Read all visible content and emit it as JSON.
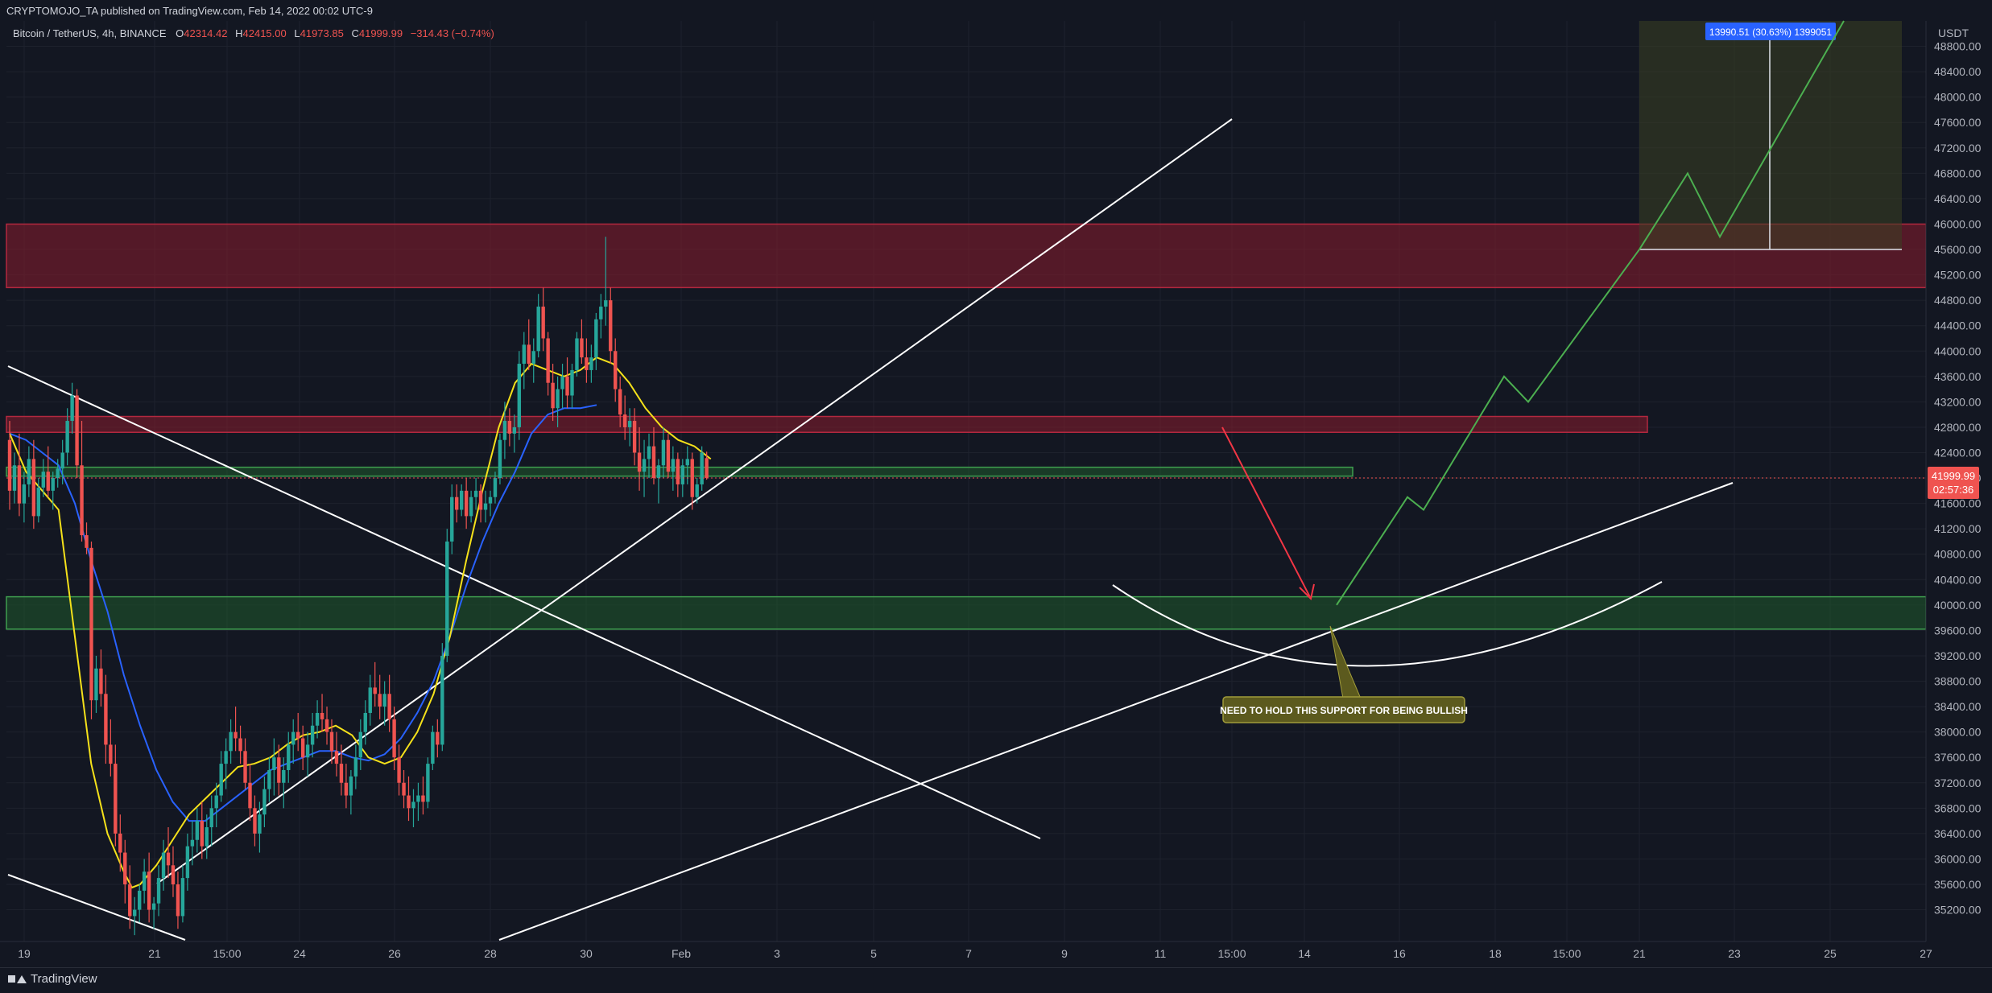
{
  "header": {
    "publisher_line": "CRYPTOMOJO_TA published on TradingView.com, Feb 14, 2022 00:02 UTC-9",
    "symbol": "Bitcoin / TetherUS, 4h, BINANCE",
    "ohlc": {
      "open_label": "O",
      "open": "42314.42",
      "high_label": "H",
      "high": "42415.00",
      "low_label": "L",
      "low": "41973.85",
      "close_label": "C",
      "close": "41999.99",
      "change": "−314.43 (−0.74%)"
    }
  },
  "footer": {
    "brand": "TradingView"
  },
  "colors": {
    "background": "#131722",
    "bull": "#26a69a",
    "bear": "#ef5350",
    "ema_fast": "#f5e11a",
    "ema_slow": "#2962ff",
    "resistance_zone": "#8b1c2e",
    "support_zone": "#1f5a2b",
    "projection": "#4caf50",
    "down_arrow": "#f23645",
    "callout": "#5c5a1e"
  },
  "chart_data": {
    "type": "candlestick",
    "price_axis": {
      "unit": "USDT",
      "range": [
        34700,
        49200
      ],
      "ticks": [
        "35200.00",
        "35600.00",
        "36000.00",
        "36400.00",
        "36800.00",
        "37200.00",
        "37600.00",
        "38000.00",
        "38400.00",
        "38800.00",
        "39200.00",
        "39600.00",
        "40000.00",
        "40400.00",
        "40800.00",
        "41200.00",
        "41600.00",
        "42000.00",
        "42400.00",
        "42800.00",
        "43200.00",
        "43600.00",
        "44000.00",
        "44400.00",
        "44800.00",
        "45200.00",
        "45600.00",
        "46000.00",
        "46400.00",
        "46800.00",
        "47200.00",
        "47600.00",
        "48000.00",
        "48400.00",
        "48800.00"
      ],
      "last_price": "41999.99",
      "countdown": "02:57:36"
    },
    "time_axis": {
      "labels": [
        "19",
        "21",
        "15:00",
        "24",
        "26",
        "28",
        "30",
        "Feb",
        "3",
        "5",
        "7",
        "9",
        "11",
        "15:00",
        "14",
        "16",
        "18",
        "15:00",
        "21",
        "23",
        "25",
        "27"
      ]
    },
    "candles": [
      [
        42600,
        42900,
        41500,
        41800
      ],
      [
        41800,
        42400,
        41600,
        42200
      ],
      [
        42200,
        42700,
        41400,
        41600
      ],
      [
        41600,
        42100,
        41300,
        41900
      ],
      [
        41900,
        42500,
        41700,
        42300
      ],
      [
        42300,
        42600,
        41200,
        41400
      ],
      [
        41400,
        42000,
        41300,
        41850
      ],
      [
        41850,
        42300,
        41700,
        42100
      ],
      [
        42100,
        42500,
        41700,
        41800
      ],
      [
        41800,
        42100,
        41500,
        42000
      ],
      [
        42000,
        42300,
        41850,
        42150
      ],
      [
        42150,
        42600,
        41900,
        42400
      ],
      [
        42400,
        43100,
        42200,
        42900
      ],
      [
        42900,
        43500,
        42700,
        43300
      ],
      [
        43300,
        43400,
        42000,
        42200
      ],
      [
        42200,
        42900,
        41000,
        41100
      ],
      [
        41100,
        41300,
        40800,
        40900
      ],
      [
        40900,
        41000,
        38200,
        38500
      ],
      [
        38500,
        39200,
        38300,
        39000
      ],
      [
        39000,
        39300,
        38400,
        38600
      ],
      [
        38600,
        38900,
        37500,
        37800
      ],
      [
        37800,
        38200,
        37300,
        37500
      ],
      [
        37500,
        37800,
        36200,
        36400
      ],
      [
        36400,
        36700,
        35800,
        36100
      ],
      [
        36100,
        36300,
        35300,
        35600
      ],
      [
        35600,
        35900,
        34900,
        35100
      ],
      [
        35100,
        35400,
        34800,
        35200
      ],
      [
        35200,
        35600,
        35000,
        35500
      ],
      [
        35500,
        36000,
        35300,
        35800
      ],
      [
        35800,
        36100,
        35000,
        35200
      ],
      [
        35200,
        35400,
        34900,
        35300
      ],
      [
        35300,
        35900,
        35100,
        35700
      ],
      [
        35700,
        36300,
        35500,
        36100
      ],
      [
        36100,
        36500,
        35700,
        35900
      ],
      [
        35900,
        36200,
        35400,
        35600
      ],
      [
        35600,
        35800,
        34900,
        35100
      ],
      [
        35100,
        35900,
        35000,
        35700
      ],
      [
        35700,
        36400,
        35500,
        36200
      ],
      [
        36200,
        36600,
        35900,
        36300
      ],
      [
        36300,
        36800,
        36100,
        36600
      ],
      [
        36600,
        36900,
        36000,
        36200
      ],
      [
        36200,
        36700,
        36000,
        36500
      ],
      [
        36500,
        37000,
        36200,
        36800
      ],
      [
        36800,
        37200,
        36500,
        37000
      ],
      [
        37000,
        37700,
        36900,
        37500
      ],
      [
        37500,
        37900,
        37100,
        37700
      ],
      [
        37700,
        38200,
        37500,
        38000
      ],
      [
        38000,
        38400,
        37700,
        37900
      ],
      [
        37900,
        38100,
        37500,
        37700
      ],
      [
        37700,
        37900,
        37100,
        37200
      ],
      [
        37200,
        37500,
        36600,
        36800
      ],
      [
        36800,
        37000,
        36200,
        36400
      ],
      [
        36400,
        36900,
        36100,
        36700
      ],
      [
        36700,
        37300,
        36500,
        37100
      ],
      [
        37100,
        37600,
        36900,
        37400
      ],
      [
        37400,
        37900,
        37000,
        37600
      ],
      [
        37600,
        37800,
        37000,
        37200
      ],
      [
        37200,
        37600,
        36800,
        37400
      ],
      [
        37400,
        38000,
        37200,
        37800
      ],
      [
        37800,
        38200,
        37500,
        38000
      ],
      [
        38000,
        38300,
        37700,
        37900
      ],
      [
        37900,
        38100,
        37400,
        37600
      ],
      [
        37600,
        38000,
        37300,
        37800
      ],
      [
        37800,
        38300,
        37600,
        38100
      ],
      [
        38100,
        38500,
        37900,
        38300
      ],
      [
        38300,
        38600,
        38000,
        38200
      ],
      [
        38200,
        38400,
        37800,
        38000
      ],
      [
        38000,
        38200,
        37500,
        37700
      ],
      [
        37700,
        38000,
        37300,
        37500
      ],
      [
        37500,
        37800,
        37000,
        37200
      ],
      [
        37200,
        37500,
        36800,
        37000
      ],
      [
        37000,
        37400,
        36700,
        37300
      ],
      [
        37300,
        37800,
        37100,
        37600
      ],
      [
        37600,
        38200,
        37400,
        38000
      ],
      [
        38000,
        38500,
        37800,
        38300
      ],
      [
        38300,
        38900,
        38100,
        38700
      ],
      [
        38700,
        39100,
        38400,
        38600
      ],
      [
        38600,
        38900,
        38200,
        38400
      ],
      [
        38400,
        38800,
        38100,
        38600
      ],
      [
        38600,
        38900,
        38000,
        38200
      ],
      [
        38200,
        38400,
        37400,
        37600
      ],
      [
        37600,
        37800,
        37000,
        37200
      ],
      [
        37200,
        37400,
        36800,
        37000
      ],
      [
        37000,
        37300,
        36600,
        36800
      ],
      [
        36800,
        37100,
        36500,
        36900
      ],
      [
        36900,
        37200,
        36600,
        37000
      ],
      [
        37000,
        37300,
        36700,
        36900
      ],
      [
        36900,
        37600,
        36800,
        37500
      ],
      [
        37500,
        38100,
        37400,
        38000
      ],
      [
        38000,
        38200,
        37600,
        37800
      ],
      [
        37800,
        39400,
        37700,
        39200
      ],
      [
        39200,
        41200,
        39100,
        41000
      ],
      [
        41000,
        41900,
        40800,
        41700
      ],
      [
        41700,
        41900,
        41300,
        41500
      ],
      [
        41500,
        41900,
        41400,
        41800
      ],
      [
        41800,
        42000,
        41200,
        41400
      ],
      [
        41400,
        41800,
        41300,
        41700
      ],
      [
        41700,
        42000,
        41500,
        41800
      ],
      [
        41800,
        41900,
        41300,
        41500
      ],
      [
        41500,
        41800,
        41300,
        41600
      ],
      [
        41600,
        41800,
        41400,
        41700
      ],
      [
        41700,
        42100,
        41600,
        42000
      ],
      [
        42000,
        42700,
        41900,
        42600
      ],
      [
        42600,
        43200,
        42300,
        42900
      ],
      [
        42900,
        43100,
        42500,
        42700
      ],
      [
        42700,
        43000,
        42400,
        42800
      ],
      [
        42800,
        44000,
        42600,
        43800
      ],
      [
        43800,
        44300,
        43400,
        44100
      ],
      [
        44100,
        44500,
        43700,
        43800
      ],
      [
        43800,
        44200,
        43500,
        44000
      ],
      [
        44000,
        44900,
        43900,
        44700
      ],
      [
        44700,
        45000,
        44000,
        44200
      ],
      [
        44200,
        44300,
        43300,
        43500
      ],
      [
        43500,
        43800,
        42900,
        43100
      ],
      [
        43100,
        43600,
        42800,
        43400
      ],
      [
        43400,
        43800,
        43100,
        43600
      ],
      [
        43600,
        43900,
        43100,
        43300
      ],
      [
        43300,
        43800,
        43100,
        43700
      ],
      [
        43700,
        44300,
        43600,
        44200
      ],
      [
        44200,
        44500,
        43800,
        43900
      ],
      [
        43900,
        44200,
        43500,
        43700
      ],
      [
        43700,
        44100,
        43500,
        43900
      ],
      [
        43900,
        44600,
        43700,
        44500
      ],
      [
        44500,
        44900,
        44200,
        44700
      ],
      [
        44700,
        45800,
        44400,
        44800
      ],
      [
        44800,
        45000,
        43800,
        44000
      ],
      [
        44000,
        44200,
        43200,
        43400
      ],
      [
        43400,
        43600,
        42800,
        43000
      ],
      [
        43000,
        43300,
        42600,
        42800
      ],
      [
        42800,
        43100,
        42500,
        42900
      ],
      [
        42900,
        43100,
        42200,
        42400
      ],
      [
        42400,
        42800,
        41800,
        42100
      ],
      [
        42100,
        42600,
        41700,
        42300
      ],
      [
        42300,
        42700,
        42000,
        42500
      ],
      [
        42500,
        42800,
        41900,
        42000
      ],
      [
        42000,
        42300,
        41600,
        42200
      ],
      [
        42200,
        42800,
        42000,
        42600
      ],
      [
        42600,
        42700,
        42000,
        42100
      ],
      [
        42100,
        42500,
        41800,
        42300
      ],
      [
        42300,
        42400,
        41700,
        41900
      ],
      [
        41900,
        42300,
        41700,
        42200
      ],
      [
        42200,
        42500,
        41900,
        42300
      ],
      [
        42300,
        42400,
        41500,
        41700
      ],
      [
        41700,
        42000,
        41600,
        41900
      ],
      [
        41900,
        42500,
        41800,
        42400
      ],
      [
        42314,
        42415,
        41974,
        42000
      ]
    ],
    "ema_fast": [
      [
        0,
        42700
      ],
      [
        20,
        42100
      ],
      [
        40,
        41800
      ],
      [
        60,
        41500
      ],
      [
        80,
        39500
      ],
      [
        100,
        37500
      ],
      [
        120,
        36400
      ],
      [
        140,
        35800
      ],
      [
        150,
        35550
      ],
      [
        160,
        35600
      ],
      [
        180,
        35900
      ],
      [
        200,
        36300
      ],
      [
        220,
        36700
      ],
      [
        240,
        36950
      ],
      [
        260,
        37200
      ],
      [
        280,
        37450
      ],
      [
        300,
        37500
      ],
      [
        320,
        37600
      ],
      [
        340,
        37800
      ],
      [
        360,
        37950
      ],
      [
        380,
        38000
      ],
      [
        400,
        38100
      ],
      [
        420,
        37950
      ],
      [
        440,
        37600
      ],
      [
        460,
        37500
      ],
      [
        480,
        37600
      ],
      [
        500,
        38000
      ],
      [
        520,
        38600
      ],
      [
        540,
        39500
      ],
      [
        560,
        40700
      ],
      [
        580,
        41800
      ],
      [
        600,
        42800
      ],
      [
        620,
        43500
      ],
      [
        640,
        43800
      ],
      [
        660,
        43700
      ],
      [
        680,
        43600
      ],
      [
        700,
        43700
      ],
      [
        720,
        43900
      ],
      [
        740,
        43800
      ],
      [
        760,
        43500
      ],
      [
        780,
        43100
      ],
      [
        800,
        42800
      ],
      [
        820,
        42600
      ],
      [
        840,
        42500
      ],
      [
        860,
        42300
      ]
    ],
    "ema_slow": [
      [
        0,
        42700
      ],
      [
        20,
        42600
      ],
      [
        40,
        42400
      ],
      [
        60,
        42200
      ],
      [
        80,
        41600
      ],
      [
        100,
        40700
      ],
      [
        120,
        39900
      ],
      [
        140,
        38900
      ],
      [
        160,
        38100
      ],
      [
        180,
        37400
      ],
      [
        200,
        36900
      ],
      [
        220,
        36600
      ],
      [
        240,
        36600
      ],
      [
        260,
        36800
      ],
      [
        280,
        37000
      ],
      [
        300,
        37200
      ],
      [
        320,
        37400
      ],
      [
        340,
        37500
      ],
      [
        360,
        37600
      ],
      [
        380,
        37700
      ],
      [
        400,
        37700
      ],
      [
        420,
        37600
      ],
      [
        440,
        37550
      ],
      [
        460,
        37650
      ],
      [
        480,
        37900
      ],
      [
        500,
        38300
      ],
      [
        520,
        38800
      ],
      [
        540,
        39500
      ],
      [
        560,
        40300
      ],
      [
        580,
        41000
      ],
      [
        600,
        41600
      ],
      [
        620,
        42100
      ],
      [
        640,
        42700
      ],
      [
        660,
        43000
      ],
      [
        680,
        43100
      ],
      [
        700,
        43100
      ],
      [
        720,
        43150
      ]
    ],
    "zones": [
      {
        "type": "resistance",
        "low": 45000,
        "high": 46000
      },
      {
        "type": "resistance",
        "low": 42720,
        "high": 42970
      },
      {
        "type": "support",
        "low": 42030,
        "high": 42170
      },
      {
        "type": "support",
        "low": 39620,
        "high": 40130
      }
    ],
    "target_box": {
      "label": "13990.51 (30.63%) 1399051"
    },
    "annotations": [
      {
        "text": "NEED TO HOLD THIS SUPPORT FOR BEING BULLISH"
      }
    ]
  }
}
